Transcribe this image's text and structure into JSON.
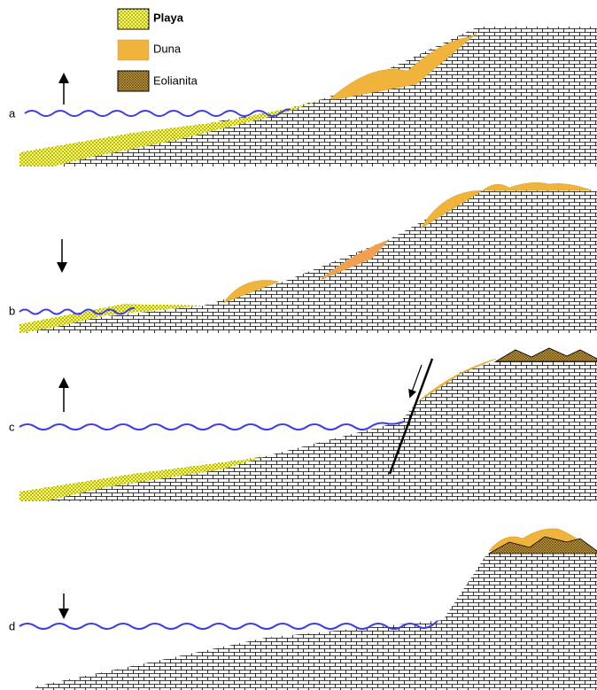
{
  "legend": [
    {
      "label": "Playa"
    },
    {
      "label": "Duna"
    },
    {
      "label": "Eolianita"
    }
  ],
  "panels": [
    {
      "label": "a"
    },
    {
      "label": "b"
    },
    {
      "label": "c"
    },
    {
      "label": "d"
    }
  ]
}
